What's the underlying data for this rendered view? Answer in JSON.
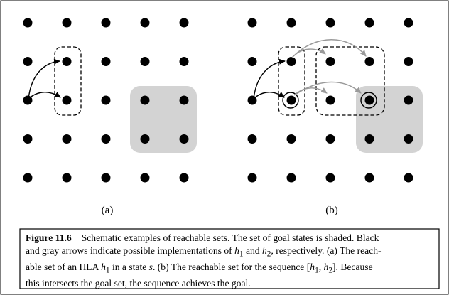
{
  "panels": [
    {
      "id": "a",
      "label": "(a)"
    },
    {
      "id": "b",
      "label": "(b)"
    }
  ],
  "colors": {
    "dot": "#000000",
    "goal_shade": "#d3d3d3",
    "black_arrow": "#000000",
    "gray_arrow": "#9a9a9a",
    "frame": "#000000"
  },
  "caption": {
    "label": "Figure 11.6",
    "line1": "Schematic examples of reachable sets. The set of goal states is shaded. Black",
    "line2_pre": "and gray arrows indicate possible implementations of ",
    "h": "h",
    "sub1": "1",
    "sub2": "2",
    "and": " and ",
    "line2_post": ", respectively. (a) The reach-",
    "line3_pre": "able set of an HLA ",
    "line3_mid": " in a state ",
    "s": "s",
    "line3_post": ". (b) The reachable set for the sequence [",
    "comma": ", ",
    "line3_end": "]. Because",
    "line4": "this intersects the goal set, the sequence achieves the goal."
  }
}
